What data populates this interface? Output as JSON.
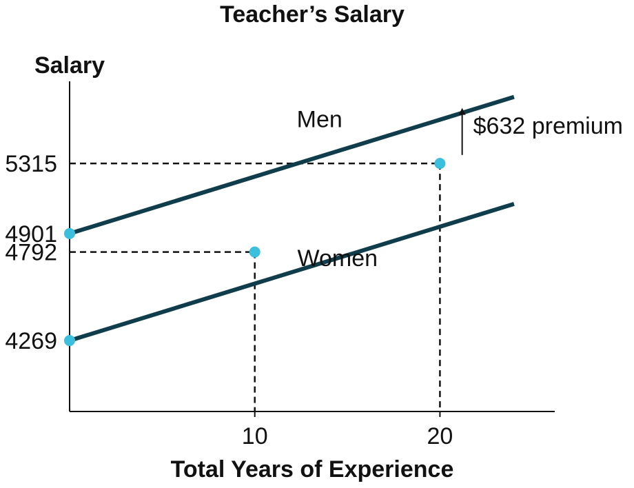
{
  "chart_data": {
    "type": "line",
    "title": "Teacher’s Salary",
    "xlabel": "Total Years of Experience",
    "ylabel": "Salary",
    "xlim": [
      0,
      26.2
    ],
    "ylim": [
      3850,
      5800
    ],
    "x_ticks": [
      10,
      20
    ],
    "y_ticks": [
      5315,
      4901,
      4792,
      4269
    ],
    "grid": false,
    "series": [
      {
        "name": "Men",
        "x": [
          0,
          24
        ],
        "values": [
          4901,
          5708
        ],
        "color": "#0f3d4c"
      },
      {
        "name": "Women",
        "x": [
          0,
          24
        ],
        "values": [
          4269,
          5076
        ],
        "color": "#0f3d4c"
      }
    ],
    "points": [
      {
        "x": 0,
        "y": 4901
      },
      {
        "x": 0,
        "y": 4269
      },
      {
        "x": 10,
        "y": 4792
      },
      {
        "x": 20,
        "y": 5315
      }
    ],
    "reference_lines": [
      {
        "x": 10,
        "y": 4792
      },
      {
        "x": 20,
        "y": 5315
      }
    ],
    "annotation": {
      "text": "$632 premium",
      "x": 21.2,
      "y_from": 5365,
      "y_to": 5643
    },
    "line_color": "#0f3d4c",
    "point_color": "#3bbfdc",
    "axis_color": "#111111"
  }
}
